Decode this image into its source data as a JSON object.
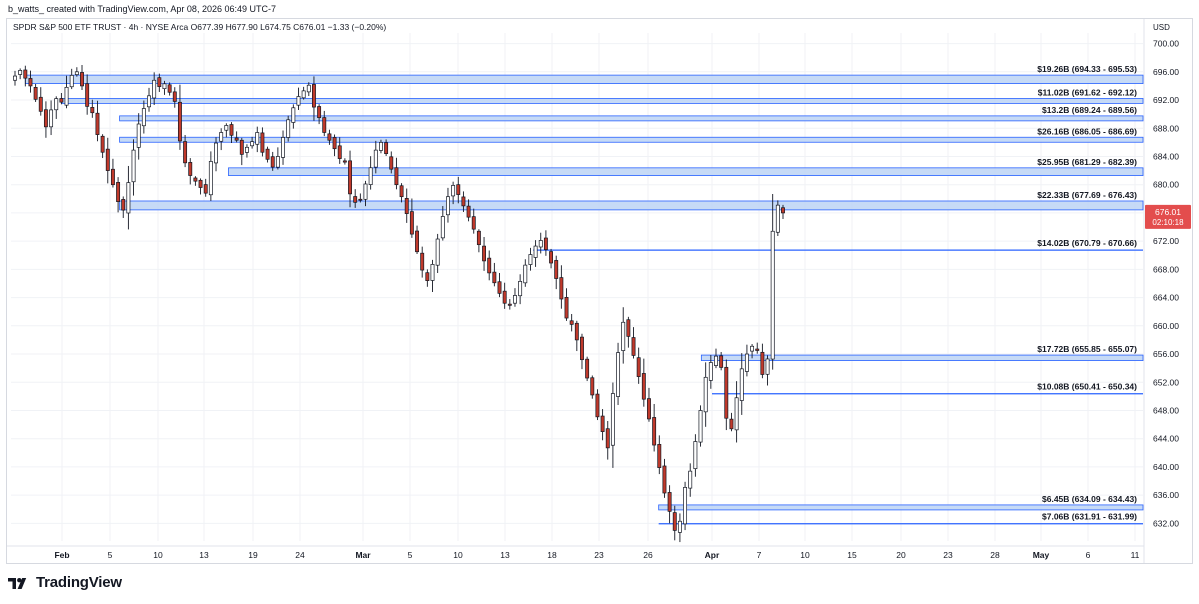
{
  "caption": "b_watts_ created with TradingView.com, Apr 08, 2026 06:49 UTC-7",
  "legend": "SPDR S&P 500 ETF TRUST · 4h · NYSE Arca  O677.39  H677.90  L674.75  C676.01  −1.33 (−0.20%)",
  "currency": "USD",
  "brand": "TradingView",
  "price_tag": {
    "price": "676.01",
    "countdown": "02:10:18",
    "value": 676.01,
    "color": "#e34d4d"
  },
  "colors": {
    "zone_fill": "#bcd4f5",
    "zone_border": "#2962ff",
    "up": "#ffffff",
    "down": "#c0392b",
    "wick": "#131722"
  },
  "chart_data": {
    "type": "candlestick",
    "ylim": [
      629.5,
      701.5
    ],
    "y_ticks": [
      632,
      636,
      640,
      644,
      648,
      652,
      656,
      660,
      664,
      668,
      672,
      676,
      680,
      684,
      688,
      692,
      696,
      700
    ],
    "y_tick_labels": [
      "632.00",
      "636.00",
      "640.00",
      "644.00",
      "648.00",
      "652.00",
      "656.00",
      "660.00",
      "664.00",
      "668.00",
      "672.00",
      "676.00",
      "680.00",
      "684.00",
      "688.00",
      "692.00",
      "696.00",
      "700.00"
    ],
    "x_ticks": [
      {
        "label": "Feb",
        "bold": true
      },
      {
        "label": "5"
      },
      {
        "label": "10"
      },
      {
        "label": "13"
      },
      {
        "label": "19"
      },
      {
        "label": "24"
      },
      {
        "label": "Mar",
        "bold": true
      },
      {
        "label": "5"
      },
      {
        "label": "10"
      },
      {
        "label": "13"
      },
      {
        "label": "18"
      },
      {
        "label": "23"
      },
      {
        "label": "26"
      },
      {
        "label": "Apr",
        "bold": true
      },
      {
        "label": "7"
      },
      {
        "label": "10"
      },
      {
        "label": "15"
      },
      {
        "label": "20"
      },
      {
        "label": "23"
      },
      {
        "label": "28"
      },
      {
        "label": "May",
        "bold": true
      },
      {
        "label": "6"
      },
      {
        "label": "11"
      }
    ],
    "zones": [
      {
        "label": "$19.26B (694.33 - 695.53)",
        "high": 695.53,
        "low": 694.33,
        "start": "Jan 29",
        "kind": "band"
      },
      {
        "label": "$11.02B (691.62 - 692.12)",
        "high": 692.12,
        "low": 691.62,
        "start": "Feb 2",
        "kind": "band"
      },
      {
        "label": "$13.2B (689.24 - 689.56)",
        "high": 689.56,
        "low": 689.24,
        "start": "Feb 6",
        "kind": "band"
      },
      {
        "label": "$26.16B (686.05 - 686.69)",
        "high": 686.69,
        "low": 686.05,
        "start": "Feb 6",
        "kind": "band"
      },
      {
        "label": "$25.95B (681.29 - 682.39)",
        "high": 682.39,
        "low": 681.29,
        "start": "Feb 16",
        "kind": "band"
      },
      {
        "label": "$22.33B (677.69 - 676.43)",
        "high": 677.69,
        "low": 676.43,
        "start": "Feb 6",
        "kind": "band"
      },
      {
        "label": "$14.02B (670.79 - 670.66)",
        "high": 670.79,
        "low": 670.66,
        "start": "Mar 16",
        "kind": "line"
      },
      {
        "label": "$17.72B (655.85 - 655.07)",
        "high": 655.85,
        "low": 655.07,
        "start": "Mar 31",
        "kind": "band"
      },
      {
        "label": "$10.08B (650.41 - 650.34)",
        "high": 650.41,
        "low": 650.34,
        "start": "Apr 1",
        "kind": "line"
      },
      {
        "label": "$6.45B (634.09 - 634.43)",
        "high": 634.43,
        "low": 634.09,
        "start": "Mar 27",
        "kind": "band"
      },
      {
        "label": "$7.06B (631.91 - 631.99)",
        "high": 631.99,
        "low": 631.91,
        "start": "Mar 27",
        "kind": "line"
      }
    ],
    "closes": [
      695.4,
      696.2,
      695.1,
      694.0,
      692.1,
      690.4,
      688.2,
      690.6,
      692.2,
      691.7,
      693.8,
      695.5,
      696.0,
      694.0,
      691.1,
      690.2,
      687.1,
      684.6,
      682.0,
      680.0,
      677.6,
      676.4,
      680.3,
      684.9,
      688.6,
      690.8,
      692.6,
      694.8,
      693.9,
      694.3,
      693.1,
      691.8,
      686.2,
      683.1,
      681.3,
      680.5,
      679.6,
      678.8,
      683.3,
      685.9,
      687.4,
      688.4,
      687.0,
      686.3,
      684.3,
      685.3,
      686.1,
      687.4,
      684.6,
      683.6,
      682.5,
      684.0,
      686.7,
      689.2,
      690.9,
      692.5,
      693.3,
      694.1,
      691.0,
      689.5,
      687.4,
      686.3,
      685.1,
      683.7,
      683.2,
      678.7,
      677.5,
      677.9,
      680.1,
      682.4,
      684.9,
      686.0,
      684.4,
      682.2,
      680.0,
      678.3,
      675.9,
      673.0,
      670.5,
      667.9,
      666.4,
      668.7,
      672.3,
      675.5,
      678.3,
      679.9,
      678.6,
      677.0,
      675.4,
      673.7,
      671.5,
      669.2,
      667.5,
      666.1,
      664.6,
      663.2,
      662.9,
      664.3,
      666.3,
      668.6,
      670.1,
      671.3,
      672.1,
      670.8,
      668.9,
      666.7,
      663.8,
      661.1,
      660.2,
      658.0,
      655.2,
      652.6,
      650.2,
      647.1,
      645.0,
      642.7,
      650.4,
      656.2,
      660.5,
      658.5,
      655.8,
      652.8,
      649.6,
      646.8,
      643.1,
      639.9,
      636.3,
      633.7,
      631.0,
      632.3,
      637.1,
      639.4,
      643.6,
      648.0,
      652.7,
      654.8,
      655.7,
      654.1,
      646.9,
      645.4,
      649.8,
      653.9,
      656.0,
      657.1,
      656.5,
      653.1,
      655.3,
      673.4,
      677.1,
      676.0
    ]
  }
}
